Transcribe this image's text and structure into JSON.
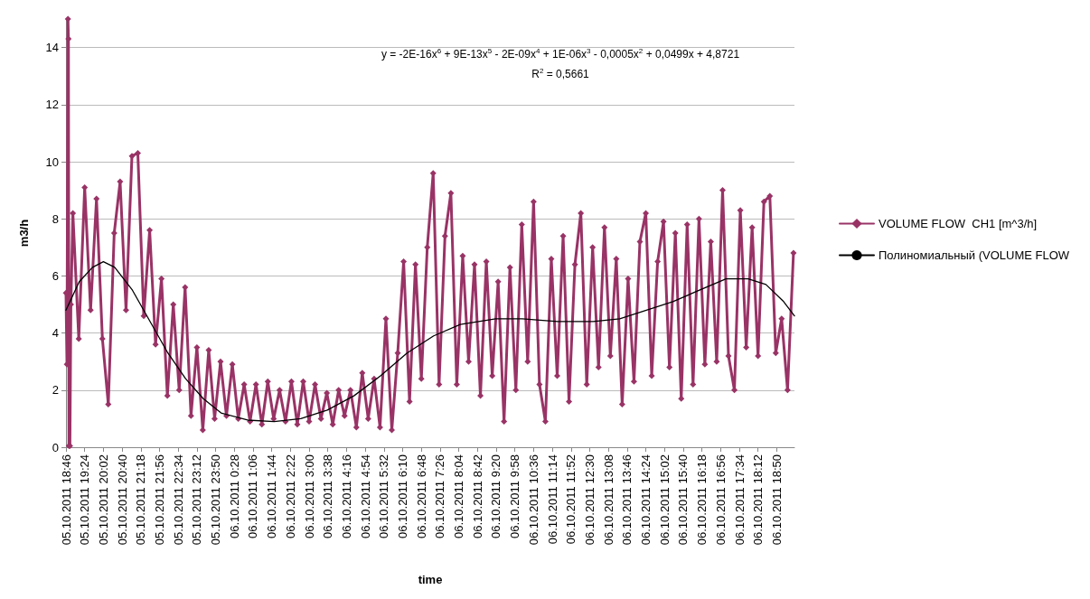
{
  "chart_data": {
    "type": "line",
    "xlabel": "time",
    "ylabel": "m3/h",
    "ylim": [
      0,
      15
    ],
    "yticks": [
      0,
      2,
      4,
      6,
      8,
      10,
      12,
      14
    ],
    "grid": "y",
    "legend": "right",
    "xlim": [
      "2011-10-05T18:46",
      "2011-10-06T19:26"
    ],
    "xticks": [
      {
        "value": "2011-10-05T18:46",
        "label": "05.10.2011 18:46"
      },
      {
        "value": "2011-10-05T19:24",
        "label": "05.10.2011 19:24"
      },
      {
        "value": "2011-10-05T20:02",
        "label": "05.10.2011 20:02"
      },
      {
        "value": "2011-10-05T20:40",
        "label": "05.10.2011 20:40"
      },
      {
        "value": "2011-10-05T21:18",
        "label": "05.10.2011 21:18"
      },
      {
        "value": "2011-10-05T21:56",
        "label": "05.10.2011 21:56"
      },
      {
        "value": "2011-10-05T22:34",
        "label": "05.10.2011 22:34"
      },
      {
        "value": "2011-10-05T23:12",
        "label": "05.10.2011 23:12"
      },
      {
        "value": "2011-10-05T23:50",
        "label": "05.10.2011 23:50"
      },
      {
        "value": "2011-10-06T00:28",
        "label": "06.10.2011 0:28"
      },
      {
        "value": "2011-10-06T01:06",
        "label": "06.10.2011 1:06"
      },
      {
        "value": "2011-10-06T01:44",
        "label": "06.10.2011 1:44"
      },
      {
        "value": "2011-10-06T02:22",
        "label": "06.10.2011 2:22"
      },
      {
        "value": "2011-10-06T03:00",
        "label": "06.10.2011 3:00"
      },
      {
        "value": "2011-10-06T03:38",
        "label": "06.10.2011 3:38"
      },
      {
        "value": "2011-10-06T04:16",
        "label": "06.10.2011 4:16"
      },
      {
        "value": "2011-10-06T04:54",
        "label": "06.10.2011 4:54"
      },
      {
        "value": "2011-10-06T05:32",
        "label": "06.10.2011 5:32"
      },
      {
        "value": "2011-10-06T06:10",
        "label": "06.10.2011 6:10"
      },
      {
        "value": "2011-10-06T06:48",
        "label": "06.10.2011 6:48"
      },
      {
        "value": "2011-10-06T07:26",
        "label": "06.10.2011 7:26"
      },
      {
        "value": "2011-10-06T08:04",
        "label": "06.10.2011 8:04"
      },
      {
        "value": "2011-10-06T08:42",
        "label": "06.10.2011 8:42"
      },
      {
        "value": "2011-10-06T09:20",
        "label": "06.10.2011 9:20"
      },
      {
        "value": "2011-10-06T09:58",
        "label": "06.10.2011 9:58"
      },
      {
        "value": "2011-10-06T10:36",
        "label": "06.10.2011 10:36"
      },
      {
        "value": "2011-10-06T11:14",
        "label": "06.10.2011 11:14"
      },
      {
        "value": "2011-10-06T11:52",
        "label": "06.10.2011 11:52"
      },
      {
        "value": "2011-10-06T12:30",
        "label": "06.10.2011 12:30"
      },
      {
        "value": "2011-10-06T13:08",
        "label": "06.10.2011 13:08"
      },
      {
        "value": "2011-10-06T13:46",
        "label": "06.10.2011 13:46"
      },
      {
        "value": "2011-10-06T14:24",
        "label": "06.10.2011 14:24"
      },
      {
        "value": "2011-10-06T15:02",
        "label": "06.10.2011 15:02"
      },
      {
        "value": "2011-10-06T15:40",
        "label": "06.10.2011 15:40"
      },
      {
        "value": "2011-10-06T16:18",
        "label": "06.10.2011 16:18"
      },
      {
        "value": "2011-10-06T16:56",
        "label": "06.10.2011 16:56"
      },
      {
        "value": "2011-10-06T17:34",
        "label": "06.10.2011 17:34"
      },
      {
        "value": "2011-10-06T18:12",
        "label": "06.10.2011 18:12"
      },
      {
        "value": "2011-10-06T18:50",
        "label": "06.10.2011 18:50"
      }
    ],
    "annotations": [
      "y = -2E-16x$^{6}$ + 9E-13x$^{5}$ - 2E-09x$^{4}$ + 1E-06x$^{3}$ - 0,0005x$^{2}$ + 0,0499x + 4,8721",
      "R$^{2}$ = 0,5661"
    ],
    "series": [
      {
        "name": "VOLUME FLOW  CH1 [m^3/h]",
        "color": "#993366",
        "marker": "diamond",
        "line_style": "solid",
        "x": [
          "2011-10-05T18:46",
          "2011-10-05T18:48",
          "2011-10-05T18:50",
          "2011-10-05T18:51",
          "2011-10-05T18:52",
          "2011-10-05T18:54",
          "2011-10-05T18:56",
          "2011-10-05T19:00",
          "2011-10-05T19:12",
          "2011-10-05T19:24",
          "2011-10-05T19:36",
          "2011-10-05T19:48",
          "2011-10-05T20:00",
          "2011-10-05T20:12",
          "2011-10-05T20:24",
          "2011-10-05T20:36",
          "2011-10-05T20:48",
          "2011-10-05T21:00",
          "2011-10-05T21:12",
          "2011-10-05T21:24",
          "2011-10-05T21:36",
          "2011-10-05T21:48",
          "2011-10-05T22:00",
          "2011-10-05T22:12",
          "2011-10-05T22:24",
          "2011-10-05T22:36",
          "2011-10-05T22:48",
          "2011-10-05T23:00",
          "2011-10-05T23:12",
          "2011-10-05T23:24",
          "2011-10-05T23:36",
          "2011-10-05T23:48",
          "2011-10-06T00:00",
          "2011-10-06T00:12",
          "2011-10-06T00:24",
          "2011-10-06T00:36",
          "2011-10-06T00:48",
          "2011-10-06T01:00",
          "2011-10-06T01:12",
          "2011-10-06T01:24",
          "2011-10-06T01:36",
          "2011-10-06T01:48",
          "2011-10-06T02:00",
          "2011-10-06T02:12",
          "2011-10-06T02:24",
          "2011-10-06T02:36",
          "2011-10-06T02:48",
          "2011-10-06T03:00",
          "2011-10-06T03:12",
          "2011-10-06T03:24",
          "2011-10-06T03:36",
          "2011-10-06T03:48",
          "2011-10-06T04:00",
          "2011-10-06T04:12",
          "2011-10-06T04:24",
          "2011-10-06T04:36",
          "2011-10-06T04:48",
          "2011-10-06T05:00",
          "2011-10-06T05:12",
          "2011-10-06T05:24",
          "2011-10-06T05:36",
          "2011-10-06T05:48",
          "2011-10-06T06:00",
          "2011-10-06T06:12",
          "2011-10-06T06:24",
          "2011-10-06T06:36",
          "2011-10-06T06:48",
          "2011-10-06T07:00",
          "2011-10-06T07:12",
          "2011-10-06T07:24",
          "2011-10-06T07:36",
          "2011-10-06T07:48",
          "2011-10-06T08:00",
          "2011-10-06T08:12",
          "2011-10-06T08:24",
          "2011-10-06T08:36",
          "2011-10-06T08:48",
          "2011-10-06T09:00",
          "2011-10-06T09:12",
          "2011-10-06T09:24",
          "2011-10-06T09:36",
          "2011-10-06T09:48",
          "2011-10-06T10:00",
          "2011-10-06T10:12",
          "2011-10-06T10:24",
          "2011-10-06T10:36",
          "2011-10-06T10:48",
          "2011-10-06T11:00",
          "2011-10-06T11:12",
          "2011-10-06T11:24",
          "2011-10-06T11:36",
          "2011-10-06T11:48",
          "2011-10-06T12:00",
          "2011-10-06T12:12",
          "2011-10-06T12:24",
          "2011-10-06T12:36",
          "2011-10-06T12:48",
          "2011-10-06T13:00",
          "2011-10-06T13:12",
          "2011-10-06T13:24",
          "2011-10-06T13:36",
          "2011-10-06T13:48",
          "2011-10-06T14:00",
          "2011-10-06T14:12",
          "2011-10-06T14:24",
          "2011-10-06T14:36",
          "2011-10-06T14:48",
          "2011-10-06T15:00",
          "2011-10-06T15:12",
          "2011-10-06T15:24",
          "2011-10-06T15:36",
          "2011-10-06T15:48",
          "2011-10-06T16:00",
          "2011-10-06T16:12",
          "2011-10-06T16:24",
          "2011-10-06T16:36",
          "2011-10-06T16:48",
          "2011-10-06T17:00",
          "2011-10-06T17:12",
          "2011-10-06T17:24",
          "2011-10-06T17:36",
          "2011-10-06T17:48",
          "2011-10-06T18:00",
          "2011-10-06T18:12",
          "2011-10-06T18:24",
          "2011-10-06T18:36",
          "2011-10-06T18:48",
          "2011-10-06T19:00",
          "2011-10-06T19:12",
          "2011-10-06T19:24"
        ],
        "values": [
          5.4,
          2.9,
          15,
          14.3,
          0.05,
          0.05,
          5.0,
          8.2,
          3.8,
          9.1,
          4.8,
          8.7,
          3.8,
          1.5,
          7.5,
          9.3,
          4.8,
          10.2,
          10.3,
          4.6,
          7.6,
          3.6,
          5.9,
          1.8,
          5.0,
          2.0,
          5.6,
          1.1,
          3.5,
          0.6,
          3.4,
          1.0,
          3.0,
          1.1,
          2.9,
          1.0,
          2.2,
          0.9,
          2.2,
          0.8,
          2.3,
          1.0,
          2.0,
          0.9,
          2.3,
          0.8,
          2.3,
          0.9,
          2.2,
          1.0,
          1.9,
          0.8,
          2.0,
          1.1,
          2.0,
          0.7,
          2.6,
          1.0,
          2.4,
          0.7,
          4.5,
          0.6,
          3.3,
          6.5,
          1.6,
          6.4,
          2.4,
          7.0,
          9.6,
          2.2,
          7.4,
          8.9,
          2.2,
          6.7,
          3.0,
          6.4,
          1.8,
          6.5,
          2.5,
          5.8,
          0.9,
          6.3,
          2.0,
          7.8,
          3.0,
          8.6,
          2.2,
          0.9,
          6.6,
          2.5,
          7.4,
          1.6,
          6.4,
          8.2,
          2.2,
          7.0,
          2.8,
          7.7,
          3.2,
          6.6,
          1.5,
          5.9,
          2.3,
          7.2,
          8.2,
          2.5,
          6.5,
          7.9,
          2.8,
          7.5,
          1.7,
          7.8,
          2.2,
          8.0,
          2.9,
          7.2,
          3.0,
          9.0,
          3.2,
          2.0,
          8.3,
          3.5,
          7.7,
          3.2,
          8.6,
          8.8,
          3.3,
          4.5,
          2.0,
          6.8
        ]
      },
      {
        "name": "Полиномиальный (VOLUME FLOW",
        "color": "#000000",
        "marker": "none",
        "line_style": "solid",
        "x": [
          "2011-10-05T18:46",
          "2011-10-05T19:13",
          "2011-10-05T19:40",
          "2011-10-05T20:02",
          "2011-10-05T20:25",
          "2011-10-05T21:01",
          "2011-10-05T21:37",
          "2011-10-05T22:13",
          "2011-10-05T22:49",
          "2011-10-05T23:25",
          "2011-10-06T00:01",
          "2011-10-06T00:55",
          "2011-10-06T01:49",
          "2011-10-06T02:43",
          "2011-10-06T03:37",
          "2011-10-06T04:31",
          "2011-10-06T05:25",
          "2011-10-06T06:19",
          "2011-10-06T07:13",
          "2011-10-06T08:07",
          "2011-10-06T09:19",
          "2011-10-06T10:13",
          "2011-10-06T11:25",
          "2011-10-06T12:37",
          "2011-10-06T13:31",
          "2011-10-06T14:25",
          "2011-10-06T15:19",
          "2011-10-06T16:13",
          "2011-10-06T17:07",
          "2011-10-06T17:52",
          "2011-10-06T18:28",
          "2011-10-06T19:04",
          "2011-10-06T19:26"
        ],
        "values": [
          4.8,
          5.8,
          6.3,
          6.5,
          6.3,
          5.5,
          4.4,
          3.3,
          2.4,
          1.7,
          1.2,
          0.95,
          0.9,
          1.0,
          1.3,
          1.8,
          2.5,
          3.3,
          3.9,
          4.3,
          4.5,
          4.5,
          4.4,
          4.4,
          4.5,
          4.8,
          5.1,
          5.5,
          5.9,
          5.9,
          5.7,
          5.1,
          4.6
        ]
      }
    ]
  }
}
